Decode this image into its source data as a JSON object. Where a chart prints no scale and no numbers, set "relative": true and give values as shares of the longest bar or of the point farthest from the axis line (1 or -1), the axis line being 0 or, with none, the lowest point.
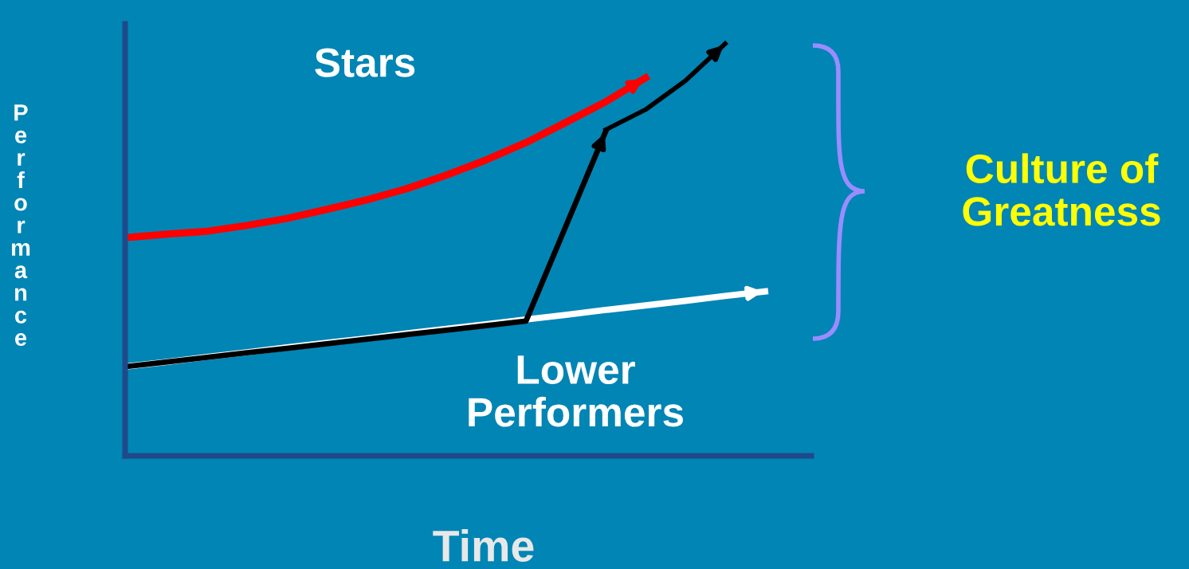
{
  "chart_data": {
    "type": "line",
    "relative": true,
    "xlabel": "Time",
    "ylabel": "Performance",
    "categories": [
      null,
      null,
      null,
      null,
      null,
      null,
      null,
      null,
      null,
      null,
      null,
      null,
      null,
      null,
      null,
      null,
      null
    ],
    "series": [
      {
        "color": "#ff0000",
        "values": [
          0.53,
          0.538,
          0.545,
          0.559,
          0.576,
          0.598,
          0.621,
          0.648,
          0.681,
          0.718,
          0.76,
          0.809,
          0.859,
          0.917,
          null,
          null,
          null
        ]
      },
      {
        "color": "#ffffff",
        "values": [
          0.217,
          0.228,
          0.24,
          0.251,
          0.263,
          0.274,
          0.285,
          0.297,
          0.308,
          0.319,
          0.331,
          0.342,
          0.354,
          0.365,
          0.376,
          0.388,
          0.399
        ]
      },
      {
        "color": "#000000",
        "values": [
          0.217,
          0.228,
          0.239,
          0.25,
          0.261,
          0.272,
          0.283,
          0.294,
          0.305,
          0.316,
          0.327,
          null,
          0.787,
          null,
          null,
          null,
          null
        ]
      },
      {
        "color": "#000000",
        "values": [
          null,
          null,
          null,
          null,
          null,
          null,
          null,
          null,
          null,
          null,
          null,
          null,
          0.791,
          0.84,
          0.91,
          1.0,
          null
        ]
      }
    ],
    "annotations": [
      "Stars",
      "Lower\nPerformers",
      "Culture of\nGreatness"
    ],
    "grid": false,
    "legend": false,
    "marker": "none",
    "line_style": "solid"
  }
}
